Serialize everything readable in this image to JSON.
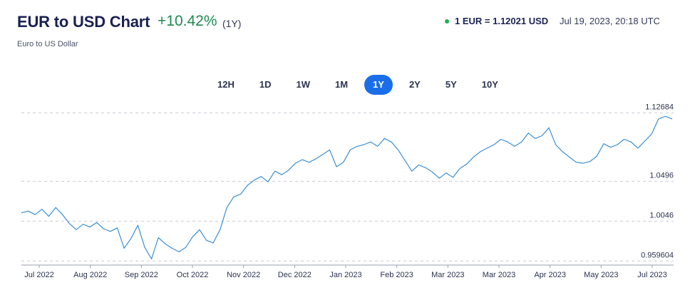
{
  "header": {
    "title": "EUR to USD Chart",
    "change": "+10.42%",
    "period": "(1Y)",
    "subtitle": "Euro to US Dollar",
    "rate": "1 EUR = 1.12021 USD",
    "timestamp": "Jul 19, 2023, 20:18 UTC"
  },
  "tabs": [
    {
      "label": "12H",
      "active": false
    },
    {
      "label": "1D",
      "active": false
    },
    {
      "label": "1W",
      "active": false
    },
    {
      "label": "1M",
      "active": false
    },
    {
      "label": "1Y",
      "active": true
    },
    {
      "label": "2Y",
      "active": false
    },
    {
      "label": "5Y",
      "active": false
    },
    {
      "label": "10Y",
      "active": false
    }
  ],
  "colors": {
    "line": "#3d8fd1",
    "active_tab": "#1a6fe8",
    "change": "#1e8a4f",
    "live_dot": "#22b04b"
  },
  "chart_data": {
    "type": "line",
    "title": "",
    "xlabel": "",
    "ylabel": "",
    "ylim": [
      0.955,
      1.132
    ],
    "y_ticks": [
      1.12684,
      1.0496,
      1.0046,
      0.959604
    ],
    "y_tick_labels": [
      "1.12684",
      "1.0496",
      "1.0046",
      "0.959604"
    ],
    "x_tick_labels": [
      "Jul 2022",
      "Aug 2022",
      "Sep 2022",
      "Oct 2022",
      "Nov 2022",
      "Dec 2022",
      "Jan 2023",
      "Feb 2023",
      "Mar 2023",
      "Mar 2023",
      "Apr 2023",
      "May 2023",
      "Jul 2023"
    ],
    "grid": "horizontal dashed",
    "legend": "none",
    "series": [
      {
        "values": [
          1.014,
          1.016,
          1.012,
          1.018,
          1.01,
          1.02,
          1.012,
          1.002,
          0.995,
          1.001,
          0.998,
          1.003,
          0.996,
          0.993,
          0.997,
          0.974,
          0.985,
          1.0,
          0.975,
          0.962,
          0.986,
          0.979,
          0.974,
          0.97,
          0.975,
          0.987,
          0.995,
          0.983,
          0.98,
          0.995,
          1.02,
          1.032,
          1.035,
          1.045,
          1.051,
          1.055,
          1.049,
          1.061,
          1.057,
          1.062,
          1.07,
          1.074,
          1.071,
          1.075,
          1.08,
          1.085,
          1.066,
          1.071,
          1.085,
          1.089,
          1.091,
          1.094,
          1.089,
          1.098,
          1.094,
          1.085,
          1.073,
          1.061,
          1.068,
          1.065,
          1.06,
          1.053,
          1.059,
          1.054,
          1.064,
          1.069,
          1.077,
          1.083,
          1.087,
          1.091,
          1.097,
          1.094,
          1.089,
          1.094,
          1.104,
          1.098,
          1.101,
          1.11,
          1.091,
          1.083,
          1.077,
          1.071,
          1.07,
          1.072,
          1.078,
          1.092,
          1.088,
          1.091,
          1.097,
          1.094,
          1.087,
          1.095,
          1.103,
          1.12,
          1.123,
          1.12
        ]
      }
    ]
  }
}
